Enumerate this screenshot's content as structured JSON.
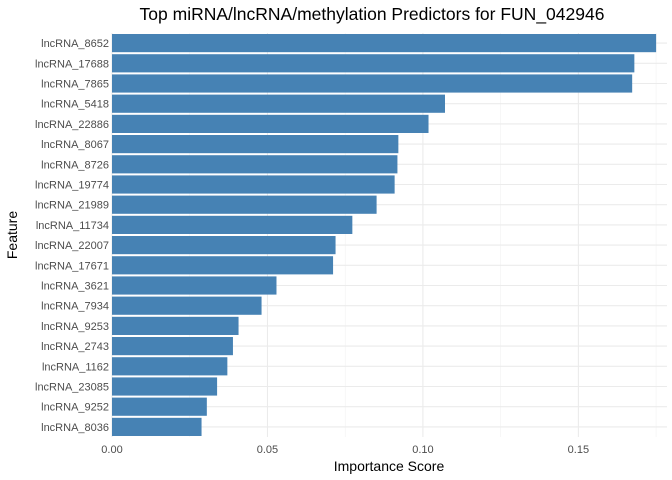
{
  "chart_data": {
    "type": "bar",
    "orientation": "horizontal",
    "title": "Top miRNA/lncRNA/methylation Predictors for FUN_042946",
    "xlabel": "Importance Score",
    "ylabel": "Feature",
    "xlim": [
      0,
      0.1785
    ],
    "xticks": [
      0.0,
      0.05,
      0.1,
      0.15
    ],
    "xtick_labels": [
      "0.00",
      "0.05",
      "0.10",
      "0.15"
    ],
    "grid": true,
    "bar_color": "#4682b4",
    "categories": [
      "lncRNA_8652",
      "lncRNA_17688",
      "lncRNA_7865",
      "lncRNA_5418",
      "lncRNA_22886",
      "lncRNA_8067",
      "lncRNA_8726",
      "lncRNA_19774",
      "lncRNA_21989",
      "lncRNA_11734",
      "lncRNA_22007",
      "lncRNA_17671",
      "lncRNA_3621",
      "lncRNA_7934",
      "lncRNA_9253",
      "lncRNA_2743",
      "lncRNA_1162",
      "lncRNA_23085",
      "lncRNA_9252",
      "lncRNA_8036"
    ],
    "values": [
      0.175,
      0.168,
      0.1673,
      0.1071,
      0.1018,
      0.0921,
      0.0918,
      0.0909,
      0.0851,
      0.0773,
      0.0719,
      0.0711,
      0.0529,
      0.0481,
      0.0407,
      0.0389,
      0.0371,
      0.0338,
      0.0305,
      0.0288
    ]
  }
}
